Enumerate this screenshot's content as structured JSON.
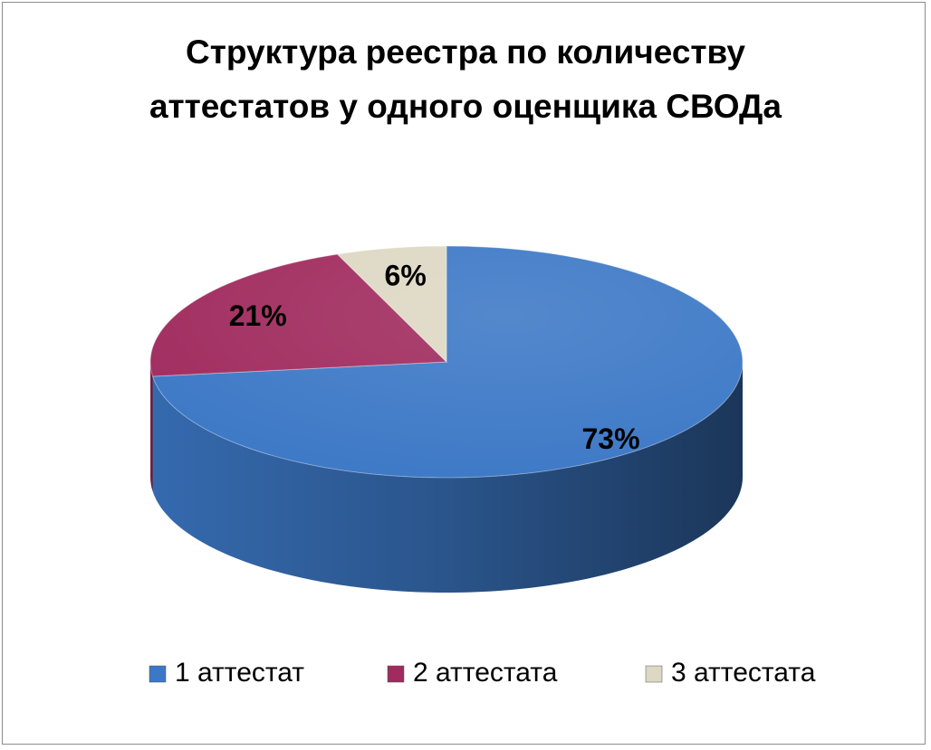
{
  "chart_data": {
    "type": "pie",
    "title": "Структура реестра по количеству аттестатов у одного оценщика СВОДа",
    "categories": [
      "1 аттестат",
      "2 аттестата",
      "3 аттестата"
    ],
    "values": [
      73,
      21,
      6
    ],
    "value_labels": [
      "73%",
      "21%",
      "6%"
    ],
    "colors": [
      "#3c78c6",
      "#a02b5e",
      "#ddd8c3"
    ],
    "legend": "bottom"
  }
}
